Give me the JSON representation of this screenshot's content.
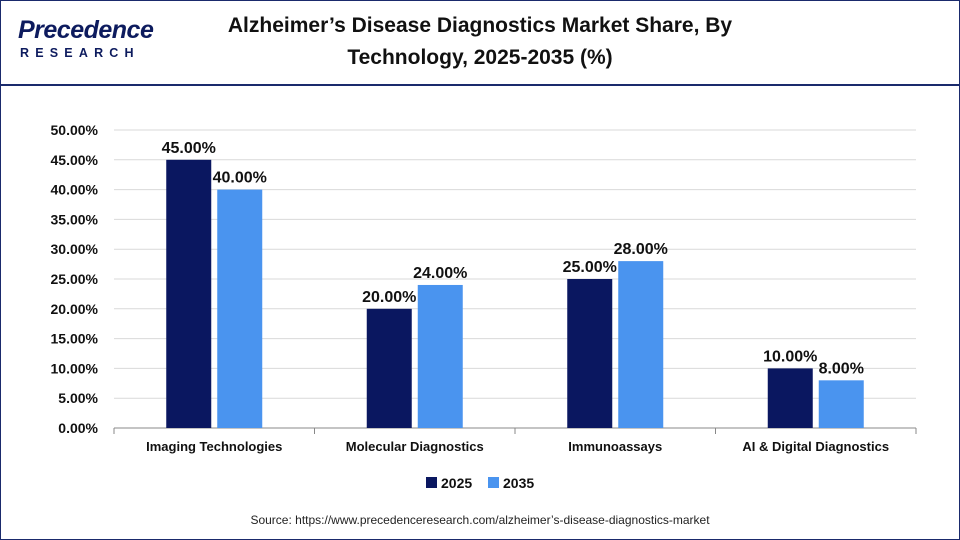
{
  "logo": {
    "name": "Precedence",
    "tagline": "RESEARCH"
  },
  "title_lines": [
    "Alzheimer’s Disease Diagnostics Market Share, By",
    "Technology, 2025-2035 (%)"
  ],
  "source": "Source: https://www.precedenceresearch.com/alzheimer’s-disease-diagnostics-market",
  "colors": {
    "series_2025": "#0a1760",
    "series_2035": "#4a94ef",
    "grid": "#d9d9d9",
    "axis": "#888888"
  },
  "chart_data": {
    "type": "bar",
    "title": "Alzheimer’s Disease Diagnostics Market Share, By Technology, 2025-2035 (%)",
    "categories": [
      "Imaging Technologies",
      "Molecular Diagnostics",
      "Immunoassays",
      "AI & Digital Diagnostics"
    ],
    "series": [
      {
        "name": "2025",
        "values": [
          45,
          20,
          25,
          10
        ],
        "labels": [
          "45.00%",
          "20.00%",
          "25.00%",
          "10.00%"
        ]
      },
      {
        "name": "2035",
        "values": [
          40,
          24,
          28,
          8
        ],
        "labels": [
          "40.00%",
          "24.00%",
          "28.00%",
          "8.00%"
        ]
      }
    ],
    "ylim": [
      0,
      50
    ],
    "y_ticks": [
      "0.00%",
      "5.00%",
      "10.00%",
      "15.00%",
      "20.00%",
      "25.00%",
      "30.00%",
      "35.00%",
      "40.00%",
      "45.00%",
      "50.00%"
    ],
    "grid": true,
    "legend": "bottom-center",
    "xlabel": "",
    "ylabel": ""
  }
}
